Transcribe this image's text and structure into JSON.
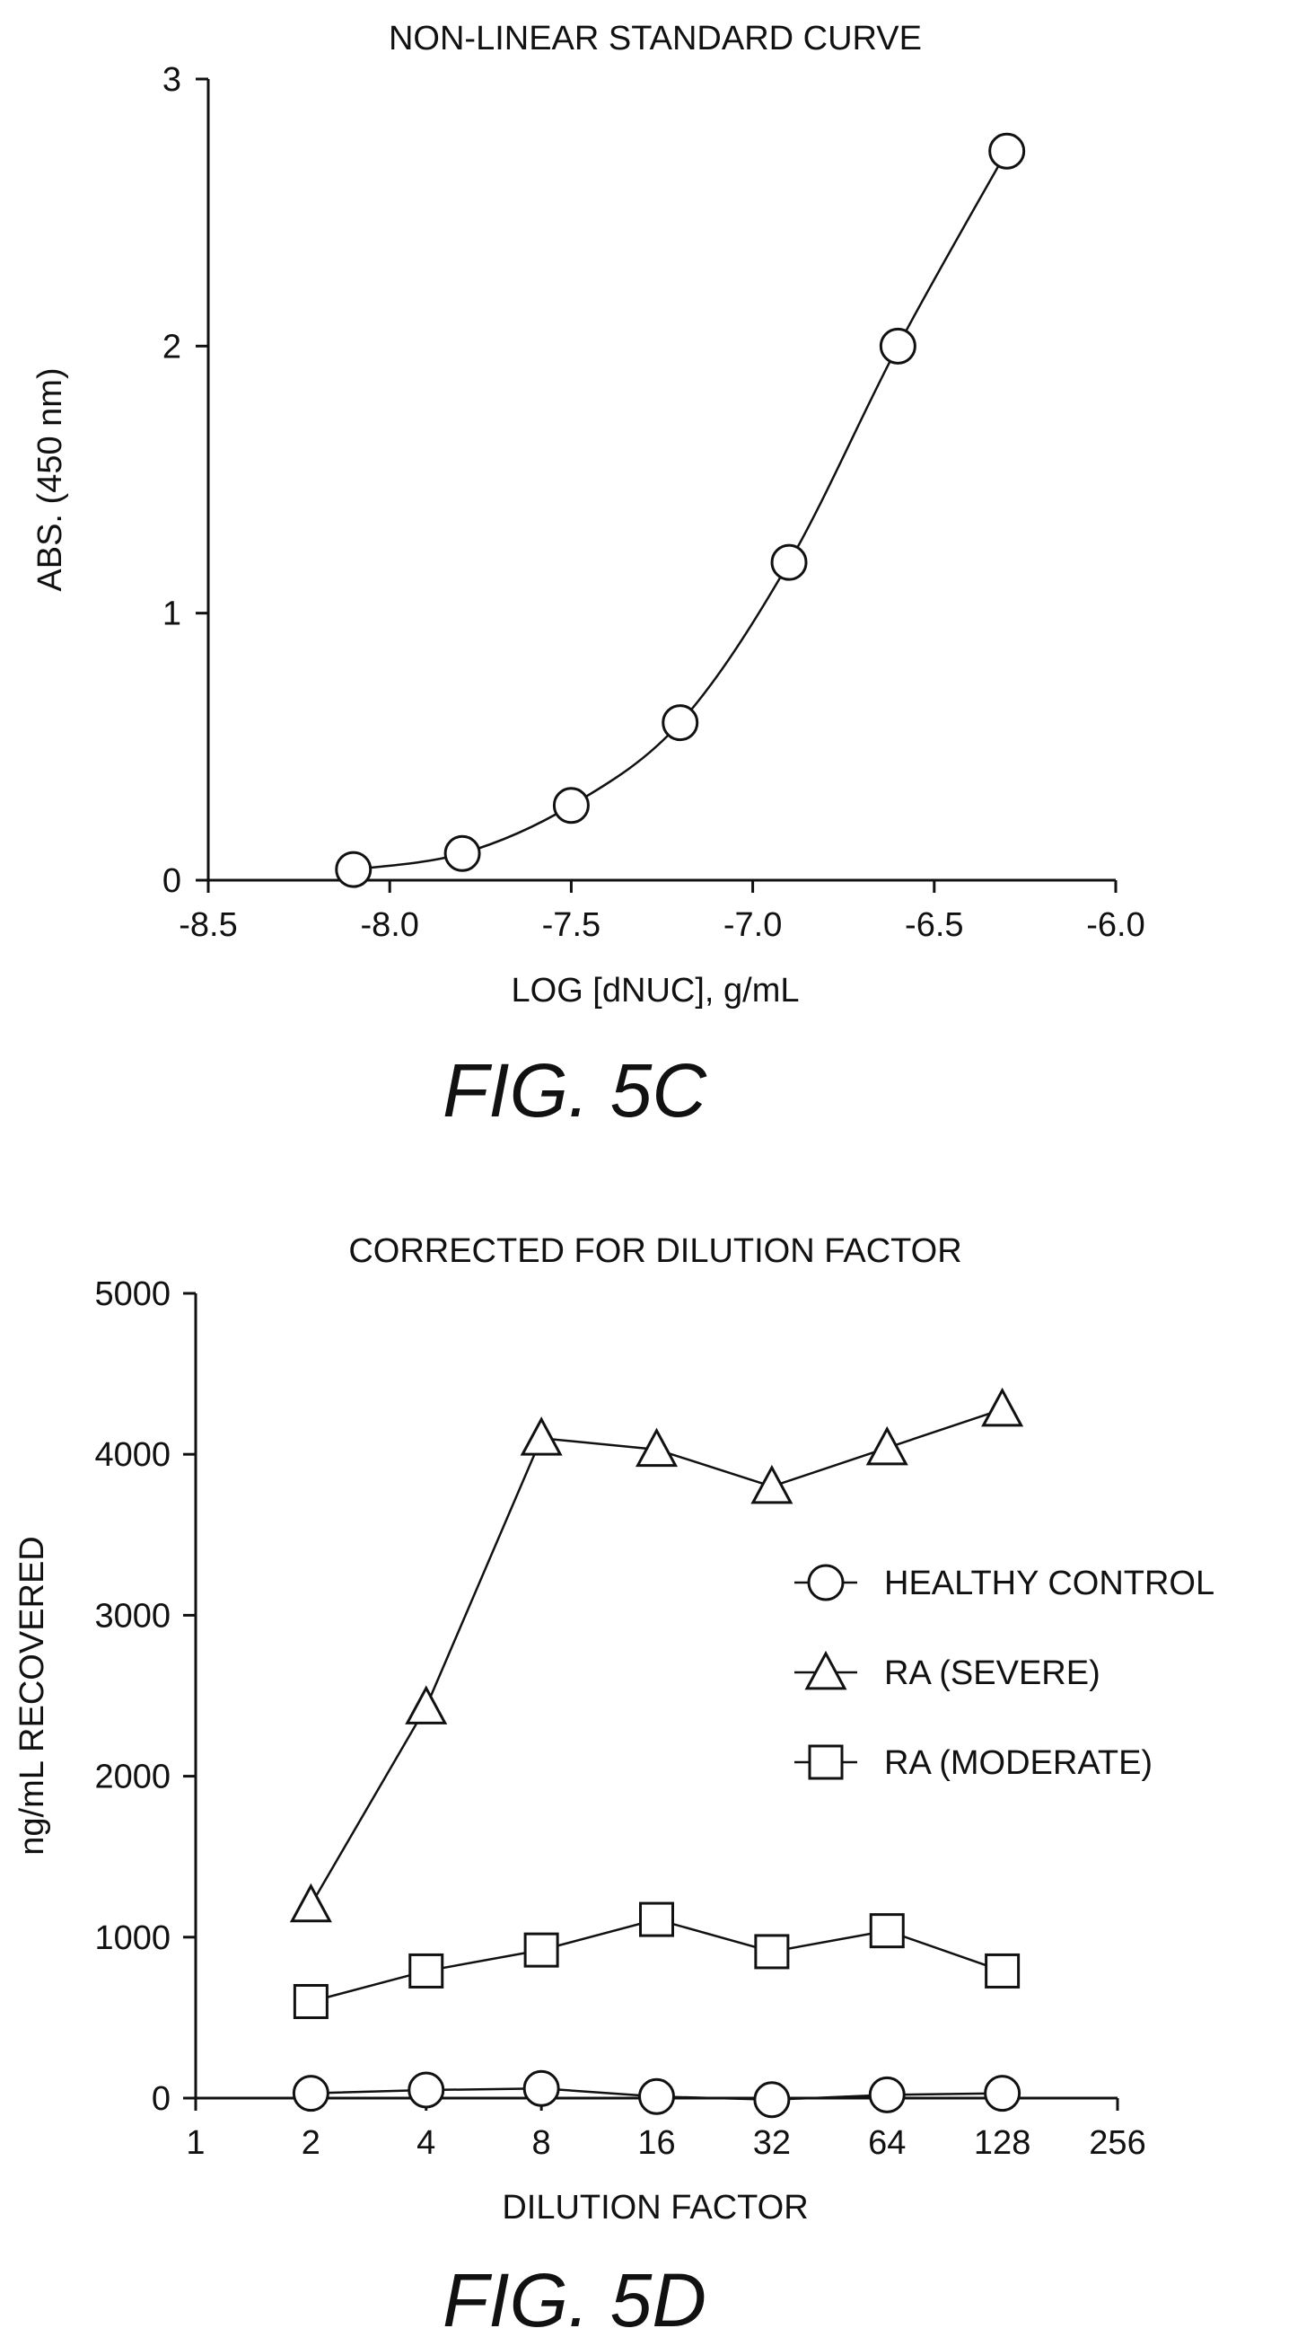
{
  "chart_data": [
    {
      "type": "line",
      "title": "NON-LINEAR STANDARD CURVE",
      "xlabel": "LOG [dNUC], g/mL",
      "ylabel": "ABS. (450 nm)",
      "xlim": [
        -8.5,
        -6.0
      ],
      "ylim": [
        0,
        3
      ],
      "xticks": [
        "-8.5",
        "-8.0",
        "-7.5",
        "-7.0",
        "-6.5",
        "-6.0"
      ],
      "yticks": [
        "0",
        "1",
        "2",
        "3"
      ],
      "smooth": true,
      "series": [
        {
          "marker": "circle",
          "x": [
            -8.1,
            -7.8,
            -7.5,
            -7.2,
            -6.9,
            -6.6,
            -6.3
          ],
          "y": [
            0.04,
            0.1,
            0.28,
            0.59,
            1.19,
            2.0,
            2.73
          ]
        }
      ],
      "figure_label": "FIG. 5C"
    },
    {
      "type": "line",
      "title": "CORRECTED FOR DILUTION FACTOR",
      "xlabel": "DILUTION FACTOR",
      "ylabel": "ng/mL RECOVERED",
      "x_scale": "log2",
      "xlim": [
        1,
        256
      ],
      "ylim": [
        0,
        5000
      ],
      "xticks": [
        "1",
        "2",
        "4",
        "8",
        "16",
        "32",
        "64",
        "128",
        "256"
      ],
      "yticks": [
        "0",
        "1000",
        "2000",
        "3000",
        "4000",
        "5000"
      ],
      "legend_position": "right",
      "x": [
        2,
        4,
        8,
        16,
        32,
        64,
        128
      ],
      "series": [
        {
          "name": "HEALTHY CONTROL",
          "marker": "circle",
          "values": [
            30,
            50,
            60,
            10,
            -10,
            20,
            30
          ]
        },
        {
          "name": "RA (SEVERE)",
          "marker": "triangle",
          "values": [
            1200,
            2430,
            4100,
            4030,
            3800,
            4040,
            4280
          ]
        },
        {
          "name": "RA (MODERATE)",
          "marker": "square",
          "values": [
            600,
            790,
            920,
            1110,
            910,
            1040,
            790
          ]
        }
      ],
      "figure_label": "FIG. 5D"
    }
  ]
}
